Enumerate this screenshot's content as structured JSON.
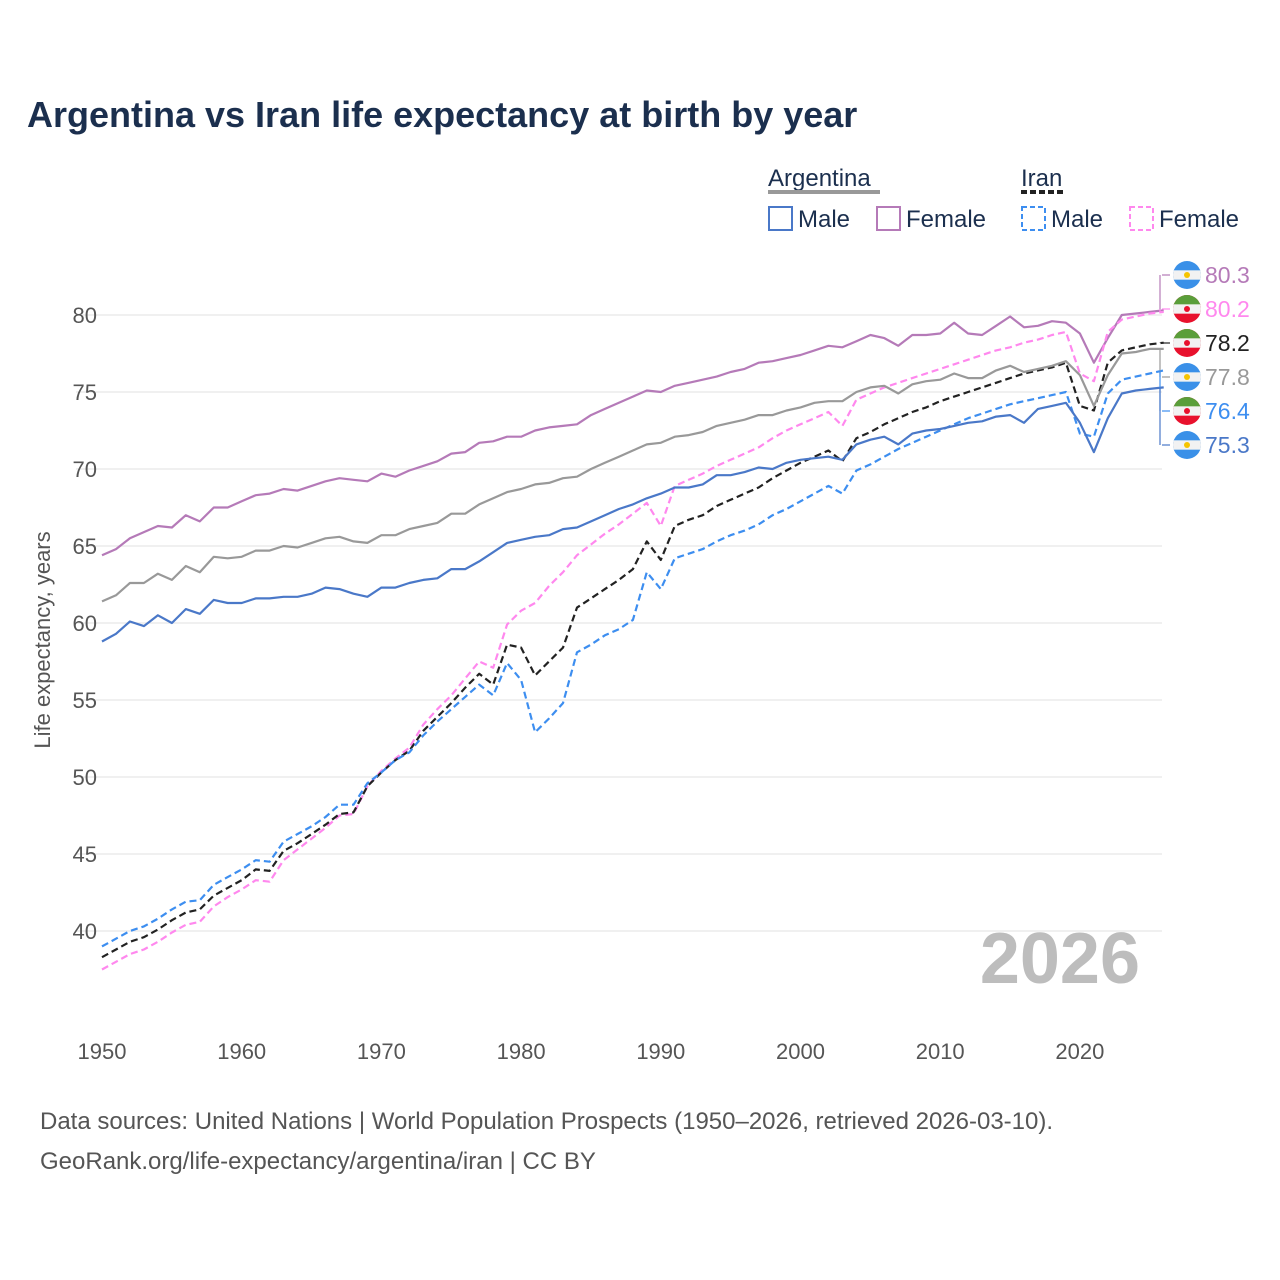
{
  "chart_data": {
    "type": "line",
    "title": "Argentina vs Iran life expectancy at birth by year",
    "xlabel": "",
    "ylabel": "Life expectancy, years",
    "xlim": [
      1950,
      2026
    ],
    "ylim": [
      35,
      82.5
    ],
    "x_ticks": [
      1950,
      1960,
      1970,
      1980,
      1990,
      2000,
      2010,
      2020
    ],
    "y_ticks": [
      40,
      45,
      50,
      55,
      60,
      65,
      70,
      75,
      80
    ],
    "grid": true,
    "watermark_year": "2026",
    "legend": {
      "groups": [
        {
          "label": "Argentina",
          "items": [
            "Male",
            "Female"
          ]
        },
        {
          "label": "Iran",
          "items": [
            "Male",
            "Female"
          ]
        }
      ],
      "placement": "top-right"
    },
    "x_start": 1950,
    "series": [
      {
        "name": "Argentina Female",
        "color": "#b57ab8",
        "dashed": false,
        "end_label": "80.3",
        "flag": "argentina",
        "values": [
          64.4,
          64.8,
          65.5,
          65.9,
          66.3,
          66.2,
          67.0,
          66.6,
          67.5,
          67.5,
          67.9,
          68.3,
          68.4,
          68.7,
          68.6,
          68.9,
          69.2,
          69.4,
          69.3,
          69.2,
          69.7,
          69.5,
          69.9,
          70.2,
          70.5,
          71.0,
          71.1,
          71.7,
          71.8,
          72.1,
          72.1,
          72.5,
          72.7,
          72.8,
          72.9,
          73.5,
          73.9,
          74.3,
          74.7,
          75.1,
          75.0,
          75.4,
          75.6,
          75.8,
          76.0,
          76.3,
          76.5,
          76.9,
          77.0,
          77.2,
          77.4,
          77.7,
          78.0,
          77.9,
          78.3,
          78.7,
          78.5,
          78.0,
          78.7,
          78.7,
          78.8,
          79.5,
          78.8,
          78.7,
          79.3,
          79.9,
          79.2,
          79.3,
          79.6,
          79.5,
          78.8,
          76.9,
          78.5,
          80.0,
          80.1,
          80.2,
          80.3
        ]
      },
      {
        "name": "Iran Female",
        "color": "#ff88ee",
        "dashed": true,
        "end_label": "80.2",
        "flag": "iran",
        "values": [
          37.5,
          38.0,
          38.5,
          38.8,
          39.3,
          39.9,
          40.4,
          40.6,
          41.6,
          42.2,
          42.7,
          43.3,
          43.2,
          44.6,
          45.3,
          46.0,
          46.7,
          47.5,
          47.6,
          49.4,
          50.4,
          51.2,
          51.9,
          53.4,
          54.4,
          55.3,
          56.4,
          57.5,
          57.1,
          59.9,
          60.8,
          61.3,
          62.4,
          63.3,
          64.4,
          65.1,
          65.8,
          66.4,
          67.1,
          67.8,
          66.3,
          68.9,
          69.3,
          69.7,
          70.2,
          70.6,
          71.0,
          71.4,
          72.0,
          72.5,
          72.9,
          73.3,
          73.7,
          72.8,
          74.5,
          74.9,
          75.3,
          75.6,
          75.9,
          76.2,
          76.5,
          76.8,
          77.1,
          77.4,
          77.7,
          77.9,
          78.2,
          78.4,
          78.7,
          78.9,
          76.2,
          75.7,
          78.9,
          79.7,
          79.9,
          80.1,
          80.2
        ]
      },
      {
        "name": "Iran",
        "color": "#222222",
        "dashed": true,
        "end_label": "78.2",
        "flag": "iran",
        "values": [
          38.3,
          38.8,
          39.3,
          39.6,
          40.1,
          40.7,
          41.2,
          41.4,
          42.3,
          42.8,
          43.3,
          44.0,
          43.9,
          45.2,
          45.7,
          46.3,
          46.9,
          47.6,
          47.7,
          49.4,
          50.3,
          51.1,
          51.7,
          53.0,
          53.9,
          54.8,
          55.8,
          56.7,
          56.0,
          58.6,
          58.4,
          56.6,
          57.5,
          58.4,
          61.0,
          61.6,
          62.2,
          62.8,
          63.5,
          65.3,
          64.1,
          66.3,
          66.7,
          67.0,
          67.6,
          68.0,
          68.4,
          68.8,
          69.4,
          69.9,
          70.4,
          70.8,
          71.2,
          70.5,
          72.0,
          72.4,
          72.9,
          73.3,
          73.7,
          74.0,
          74.4,
          74.7,
          75.0,
          75.3,
          75.6,
          75.9,
          76.2,
          76.4,
          76.6,
          76.9,
          74.1,
          73.8,
          76.9,
          77.7,
          77.9,
          78.1,
          78.2
        ]
      },
      {
        "name": "Argentina",
        "color": "#999999",
        "dashed": false,
        "end_label": "77.8",
        "flag": "argentina",
        "values": [
          61.4,
          61.8,
          62.6,
          62.6,
          63.2,
          62.8,
          63.7,
          63.3,
          64.3,
          64.2,
          64.3,
          64.7,
          64.7,
          65.0,
          64.9,
          65.2,
          65.5,
          65.6,
          65.3,
          65.2,
          65.7,
          65.7,
          66.1,
          66.3,
          66.5,
          67.1,
          67.1,
          67.7,
          68.1,
          68.5,
          68.7,
          69.0,
          69.1,
          69.4,
          69.5,
          70.0,
          70.4,
          70.8,
          71.2,
          71.6,
          71.7,
          72.1,
          72.2,
          72.4,
          72.8,
          73.0,
          73.2,
          73.5,
          73.5,
          73.8,
          74.0,
          74.3,
          74.4,
          74.4,
          75.0,
          75.3,
          75.4,
          74.9,
          75.5,
          75.7,
          75.8,
          76.2,
          75.9,
          75.9,
          76.4,
          76.7,
          76.3,
          76.5,
          76.7,
          77.0,
          76.1,
          74.1,
          76.1,
          77.5,
          77.6,
          77.8,
          77.8
        ]
      },
      {
        "name": "Iran Male",
        "color": "#3d8ef0",
        "dashed": true,
        "end_label": "76.4",
        "flag": "iran",
        "values": [
          39.0,
          39.5,
          40.0,
          40.3,
          40.8,
          41.4,
          41.9,
          42.0,
          43.0,
          43.5,
          44.0,
          44.6,
          44.5,
          45.8,
          46.3,
          46.8,
          47.4,
          48.2,
          48.2,
          49.6,
          50.3,
          51.1,
          51.6,
          52.7,
          53.6,
          54.4,
          55.2,
          56.0,
          55.3,
          57.4,
          56.3,
          52.9,
          53.8,
          54.8,
          58.1,
          58.6,
          59.2,
          59.6,
          60.2,
          63.3,
          62.2,
          64.2,
          64.5,
          64.8,
          65.3,
          65.7,
          66.0,
          66.4,
          67.0,
          67.4,
          67.9,
          68.4,
          68.9,
          68.4,
          69.9,
          70.3,
          70.8,
          71.3,
          71.7,
          72.1,
          72.5,
          72.9,
          73.3,
          73.6,
          73.9,
          74.2,
          74.4,
          74.6,
          74.8,
          75.0,
          72.3,
          72.1,
          74.9,
          75.8,
          76.0,
          76.2,
          76.4
        ]
      },
      {
        "name": "Argentina Male",
        "color": "#4a78c8",
        "dashed": false,
        "end_label": "75.3",
        "flag": "argentina",
        "values": [
          58.8,
          59.3,
          60.1,
          59.8,
          60.5,
          60.0,
          60.9,
          60.6,
          61.5,
          61.3,
          61.3,
          61.6,
          61.6,
          61.7,
          61.7,
          61.9,
          62.3,
          62.2,
          61.9,
          61.7,
          62.3,
          62.3,
          62.6,
          62.8,
          62.9,
          63.5,
          63.5,
          64.0,
          64.6,
          65.2,
          65.4,
          65.6,
          65.7,
          66.1,
          66.2,
          66.6,
          67.0,
          67.4,
          67.7,
          68.1,
          68.4,
          68.8,
          68.8,
          69.0,
          69.6,
          69.6,
          69.8,
          70.1,
          70.0,
          70.4,
          70.6,
          70.7,
          70.8,
          70.6,
          71.6,
          71.9,
          72.1,
          71.6,
          72.3,
          72.5,
          72.6,
          72.8,
          73.0,
          73.1,
          73.4,
          73.5,
          73.0,
          73.9,
          74.1,
          74.3,
          73.0,
          71.1,
          73.3,
          74.9,
          75.1,
          75.2,
          75.3
        ]
      }
    ]
  },
  "sources": {
    "line1": "Data sources: United Nations | World Population Prospects (1950–2026, retrieved 2026-03-10).",
    "line2": "GeoRank.org/life-expectancy/argentina/iran | CC BY"
  }
}
